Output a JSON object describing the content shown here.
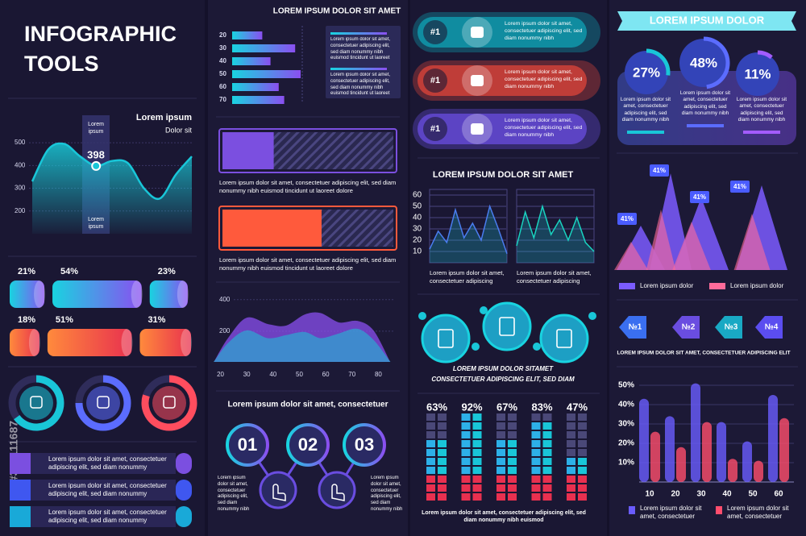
{
  "watermark": "#367111687",
  "col1": {
    "title": [
      "INFOGRAPHIC",
      "TOOLS"
    ],
    "area": {
      "title": "Lorem ipsum",
      "subtitle": "Dolor sit",
      "ylim": [
        100,
        550
      ],
      "yticks": [
        200,
        300,
        400,
        500
      ],
      "values": [
        330,
        470,
        495,
        440,
        398,
        420,
        410,
        300,
        255,
        360,
        440
      ],
      "highlight_top": "Lorem ipsum",
      "highlight_bottom": "Lorem ipsum",
      "color": "#19c6d8"
    },
    "cylinders": [
      {
        "values": [
          21,
          54,
          23
        ],
        "value_labels": [
          "21%",
          "54%",
          "23%"
        ]
      },
      {
        "values": [
          18,
          51,
          31
        ],
        "value_labels": [
          "18%",
          "51%",
          "31%"
        ]
      }
    ],
    "gauges": {
      "values": [
        65,
        75,
        80
      ],
      "colors": [
        "#19c6d8",
        "#5b6cff",
        "#ff4d5e"
      ]
    },
    "list": [
      "Lorem ipsum dolor sit amet, consectetuer adipiscing elit, sed diam nonummy",
      "Lorem ipsum dolor sit amet, consectetuer adipiscing elit, sed diam nonummy",
      "Lorem ipsum dolor sit amet, consectetuer adipiscing elit, sed diam nonummy"
    ]
  },
  "col2": {
    "heading": "LOREM IPSUM DOLOR SIT AMET",
    "hbars": {
      "categories": [
        "20",
        "30",
        "40",
        "50",
        "60",
        "70"
      ],
      "values": [
        44,
        92,
        56,
        100,
        68,
        76
      ]
    },
    "notes": [
      "Lorem ipsum dolor sit amet, consectetuer adipiscing elit, sed diam nonummy nibh euismod tincidunt ut laoreet",
      "Lorem ipsum dolor sit amet, consectetuer adipiscing elit, sed diam nonummy nibh euismod tincidunt ut laoreet"
    ],
    "progress": [
      {
        "value": 30,
        "color": "#7b4fe0",
        "caption": "Lorem ipsum dolor sit amet, consectetuer adipiscing elit, sed diam nonummy nibh euismod tincidunt ut laoreet dolore"
      },
      {
        "value": 58,
        "color": "#ff5a3c",
        "caption": "Lorem ipsum dolor sit amet, consectetuer adipiscing elit, sed diam nonummy nibh euismod tincidunt ut laoreet dolore"
      }
    ],
    "wave": {
      "xlim": [
        18,
        86
      ],
      "xticks": [
        20,
        30,
        40,
        50,
        60,
        70,
        80
      ],
      "ylim": [
        0,
        460
      ],
      "yticks": [
        200,
        400
      ],
      "x": [
        18,
        23,
        30,
        38,
        45,
        52,
        58,
        65,
        72,
        78,
        84
      ],
      "series": [
        {
          "color": "#8a4ff0",
          "values": [
            10,
            150,
            280,
            240,
            230,
            300,
            310,
            250,
            260,
            200,
            10
          ]
        },
        {
          "color": "#19c6d8",
          "values": [
            10,
            120,
            200,
            150,
            170,
            190,
            150,
            180,
            210,
            140,
            10
          ]
        }
      ]
    },
    "steps": {
      "heading": "Lorem ipsum dolor sit amet, consectetuer",
      "labels": [
        "01",
        "02",
        "03"
      ],
      "notes": [
        "Lorem ipsum dolor sit amet, consectetuer adipiscing elit, sed diam nonummy nibh",
        "Lorem ipsum dolor sit amet, consectetuer adipiscing elit, sed diam nonummy nibh"
      ]
    }
  },
  "col3": {
    "ranks": [
      {
        "label": "#1",
        "text": "Lorem ipsum dolor sit amet, consectetuer adipiscing elit, sed diam nonummy nibh",
        "color": "#0fa3b5"
      },
      {
        "label": "#1",
        "text": "Lorem ipsum dolor sit amet, consectetuer adipiscing elit, sed diam nonummy nibh",
        "color": "#e0453a"
      },
      {
        "label": "#1",
        "text": "Lorem ipsum dolor sit amet, consectetuer adipiscing elit, sed diam nonummy nibh",
        "color": "#6a4de0"
      }
    ],
    "heading": "LOREM IPSUM DOLOR SIT AMET",
    "lines": {
      "ylim": [
        0,
        65
      ],
      "yticks": [
        10,
        20,
        30,
        40,
        50,
        60
      ],
      "charts": [
        {
          "values": [
            12,
            28,
            18,
            47,
            22,
            35,
            20,
            50,
            30,
            8
          ],
          "caption": "Lorem ipsum dolor sit amet, consectetuer adipiscing"
        },
        {
          "values": [
            15,
            45,
            22,
            50,
            25,
            38,
            20,
            40,
            18,
            10
          ],
          "caption": "Lorem ipsum dolor sit amet, consectetuer adipiscing"
        }
      ]
    },
    "tagline": [
      "LOREM IPSUM DOLOR SITAMET",
      "CONSECTETUER ADIPISCING ELIT, SED DIAM"
    ],
    "meters": {
      "values": [
        63,
        92,
        67,
        83,
        47
      ],
      "value_labels": [
        "63%",
        "92%",
        "67%",
        "83%",
        "47%"
      ]
    },
    "footer": "Lorem ipsum dolor sit amet, consectetuer adipiscing elit, sed diam nonummy nibh euismod"
  },
  "col4": {
    "heading": "LOREM IPSUM DOLOR",
    "circles": {
      "values": [
        27,
        48,
        11
      ],
      "value_labels": [
        "27%",
        "48%",
        "11%"
      ],
      "texts": [
        "Lorem ipsum dolor sit amet, consectetuer adipiscing elit, sed diam nonummy nibh",
        "Lorem ipsum dolor sit amet, consectetuer adipiscing elit, sed diam nonummy nibh",
        "Lorem ipsum dolor sit amet, consectetuer adipiscing elit, sed diam nonummy nibh"
      ]
    },
    "peaks": {
      "annotations": [
        "41%",
        "41%",
        "41%",
        "41%"
      ],
      "series": [
        {
          "name": "Lorem ipsum dolor",
          "color": "#7b5cff",
          "values": [
            55,
            120,
            90,
            105
          ]
        },
        {
          "name": "Lorem ipsum dolor",
          "color": "#ff6b9a",
          "values": [
            35,
            75,
            60,
            70
          ]
        }
      ]
    },
    "badges": [
      "№1",
      "№2",
      "№3",
      "№4"
    ],
    "caption": "LOREM IPSUM DOLOR SIT AMET, CONSECTETUER ADIPISCING ELIT",
    "bars": {
      "categories": [
        "10",
        "20",
        "30",
        "40",
        "50",
        "60"
      ],
      "ylim": [
        0,
        55
      ],
      "yticks": [
        {
          "value": 10,
          "label": "10%"
        },
        {
          "value": 20,
          "label": "20%"
        },
        {
          "value": 30,
          "label": "30%"
        },
        {
          "value": 40,
          "label": "40%"
        },
        {
          "value": 50,
          "label": "50%"
        }
      ],
      "series": [
        {
          "name": "Lorem ipsum dolor sit amet, consectetuer",
          "color": "#6a5cff",
          "values": [
            43,
            34,
            51,
            31,
            21,
            45
          ]
        },
        {
          "name": "Lorem ipsum dolor sit amet, consectetuer",
          "color": "#ff4d6d",
          "values": [
            26,
            18,
            31,
            12,
            11,
            33
          ]
        }
      ]
    }
  }
}
